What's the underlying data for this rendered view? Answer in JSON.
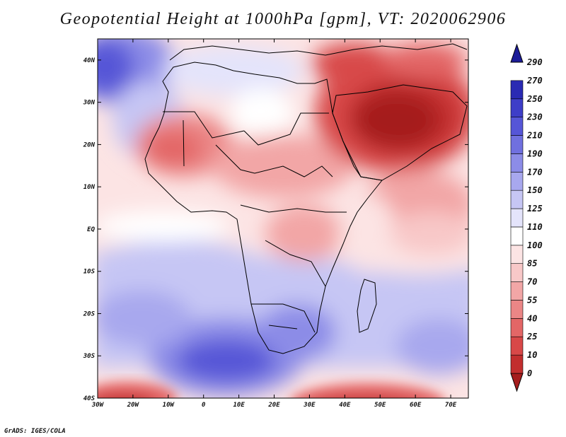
{
  "title": "Geopotential Height at 1000hPa [gpm], VT: 2020062906",
  "credit": "GrADS: IGES/COLA",
  "map": {
    "variable": "Geopotential Height",
    "level": "1000hPa",
    "units": "gpm",
    "valid_time": "2020062906",
    "region": "Africa and Arabian Peninsula",
    "lon_labels": [
      "30W",
      "20W",
      "10W",
      "0",
      "10E",
      "20E",
      "30E",
      "40E",
      "50E",
      "60E",
      "70E"
    ],
    "lat_labels": [
      "40N",
      "30N",
      "20N",
      "10N",
      "EQ",
      "10S",
      "20S",
      "30S",
      "40S"
    ],
    "lon_range": [
      -30,
      75
    ],
    "lat_range": [
      -40,
      45
    ]
  },
  "colorbar": {
    "labels": [
      "0",
      "10",
      "25",
      "40",
      "55",
      "70",
      "85",
      "100",
      "110",
      "125",
      "150",
      "170",
      "190",
      "210",
      "230",
      "250",
      "270",
      "290"
    ],
    "colors": [
      "#a51d1d",
      "#c22e2e",
      "#d84848",
      "#e36666",
      "#eb8686",
      "#f2a6a6",
      "#f8c8c8",
      "#fce4e4",
      "#ffffff",
      "#e4e4fb",
      "#c6c6f4",
      "#a8a8ee",
      "#8c8ce7",
      "#7070df",
      "#5656d7",
      "#3e3ec8",
      "#2a2ab3",
      "#1c1c98"
    ]
  }
}
